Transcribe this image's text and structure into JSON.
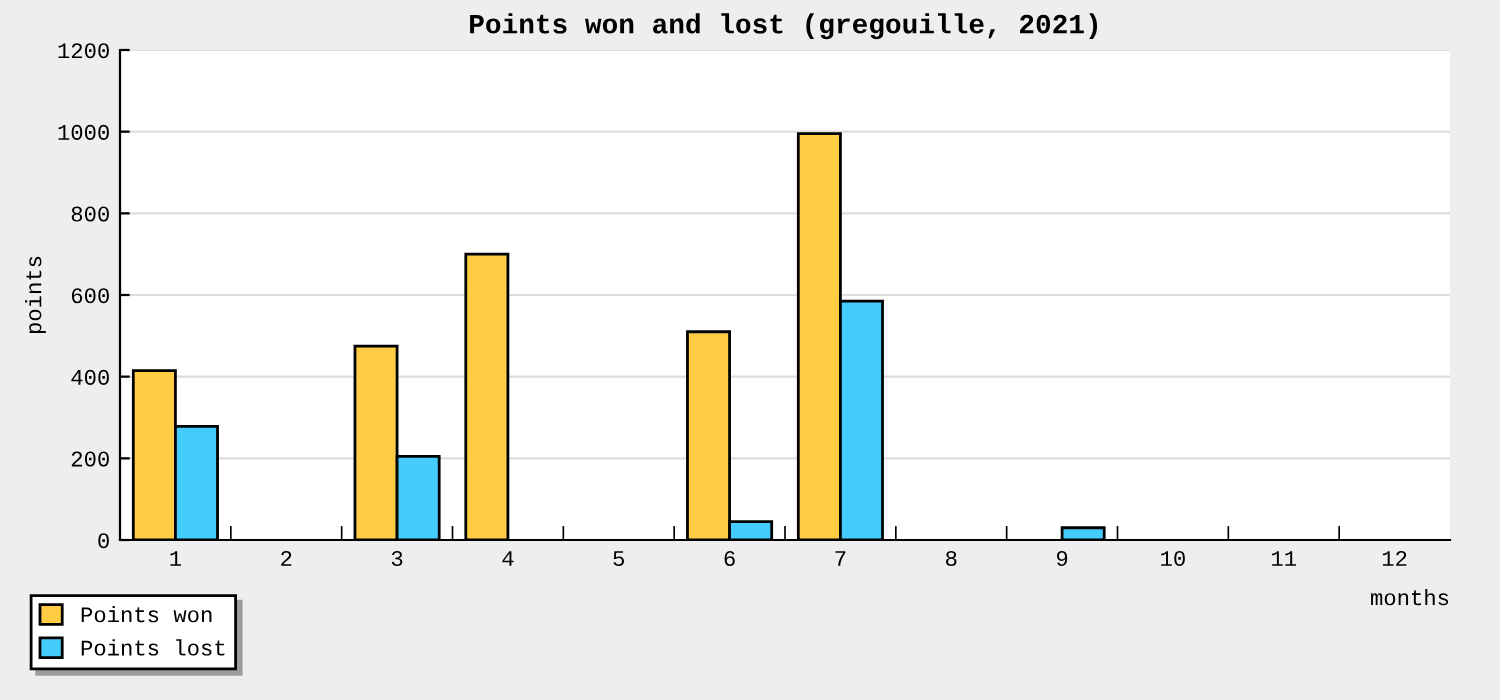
{
  "chart_data": {
    "type": "bar",
    "title": "Points won and lost (gregouille, 2021)",
    "xlabel": "months",
    "ylabel": "points",
    "categories": [
      "1",
      "2",
      "3",
      "4",
      "5",
      "6",
      "7",
      "8",
      "9",
      "10",
      "11",
      "12"
    ],
    "series": [
      {
        "name": "Points won",
        "color": "#ffcc44",
        "values": [
          415,
          0,
          475,
          700,
          0,
          510,
          995,
          0,
          0,
          0,
          0,
          0
        ]
      },
      {
        "name": "Points lost",
        "color": "#44ccff",
        "values": [
          278,
          0,
          205,
          0,
          0,
          45,
          585,
          0,
          30,
          0,
          0,
          0
        ]
      }
    ],
    "ylim": [
      0,
      1200
    ],
    "yticks": [
      0,
      200,
      400,
      600,
      800,
      1000,
      1200
    ],
    "grid": "y",
    "legend": "bottom left"
  }
}
